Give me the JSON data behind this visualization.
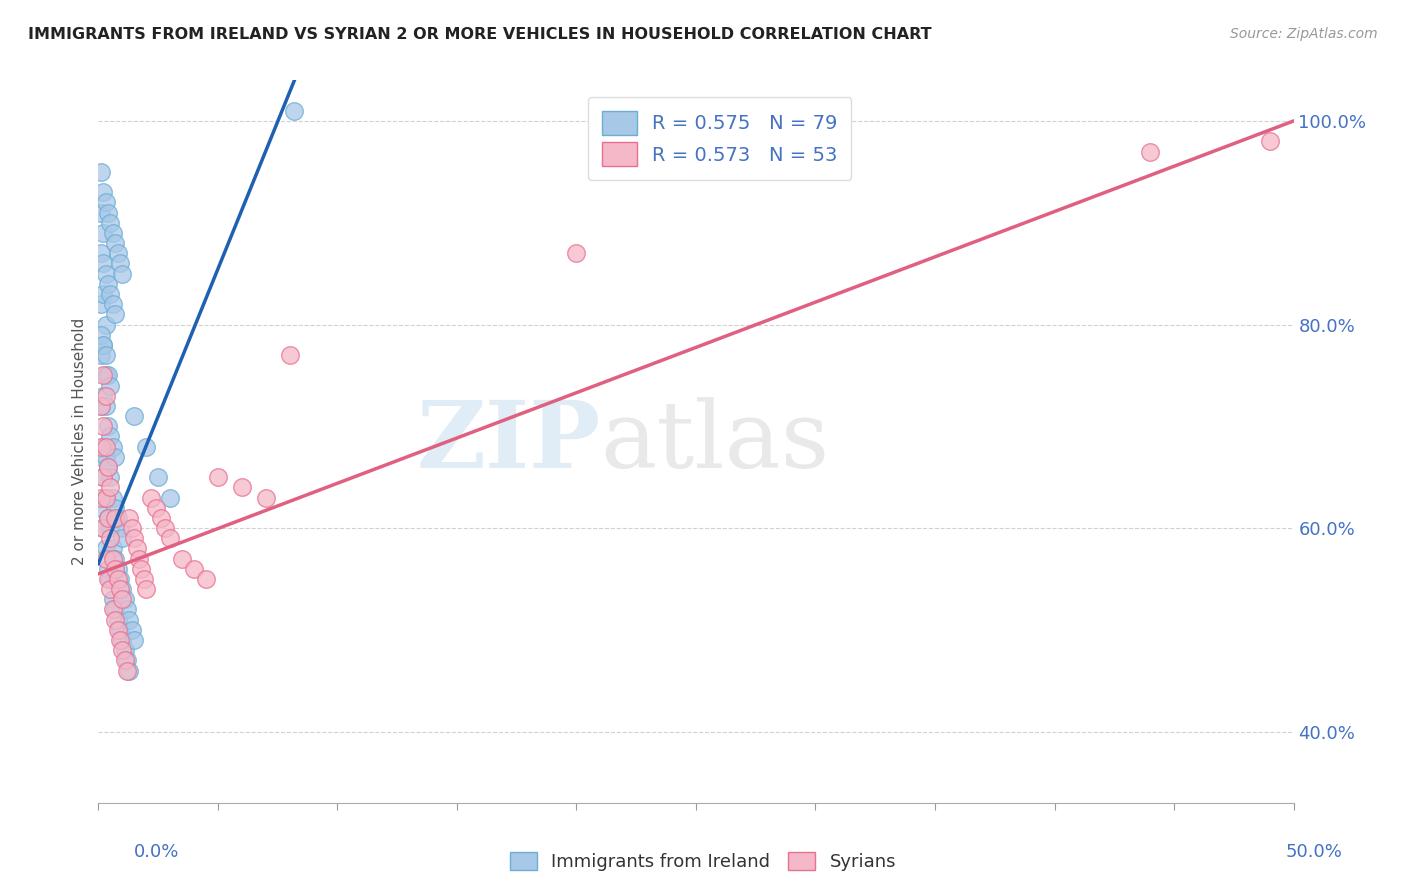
{
  "title": "IMMIGRANTS FROM IRELAND VS SYRIAN 2 OR MORE VEHICLES IN HOUSEHOLD CORRELATION CHART",
  "source": "Source: ZipAtlas.com",
  "ylabel": "2 or more Vehicles in Household",
  "watermark_zip": "ZIP",
  "watermark_atlas": "atlas",
  "ireland_color": "#a8c8e8",
  "ireland_edge_color": "#6aaed6",
  "syrian_color": "#f4b8c8",
  "syrian_edge_color": "#e87090",
  "ireland_line_color": "#2060b0",
  "syrian_line_color": "#e06080",
  "ireland_R": 0.575,
  "ireland_N": 79,
  "syrian_R": 0.573,
  "syrian_N": 53,
  "xmin": 0.0,
  "xmax": 0.5,
  "ymin": 0.33,
  "ymax": 1.04,
  "yticks": [
    0.4,
    0.6,
    0.8,
    1.0
  ],
  "ytick_labels": [
    "40.0%",
    "60.0%",
    "80.0%",
    "100.0%"
  ],
  "ireland_line_x0": 0.0,
  "ireland_line_x1": 0.082,
  "ireland_line_y0": 0.565,
  "ireland_line_y1": 1.04,
  "syrian_line_x0": 0.0,
  "syrian_line_x1": 0.5,
  "syrian_line_y0": 0.555,
  "syrian_line_y1": 1.0,
  "ireland_pts_x": [
    0.001,
    0.001,
    0.001,
    0.001,
    0.001,
    0.002,
    0.002,
    0.002,
    0.002,
    0.002,
    0.002,
    0.003,
    0.003,
    0.003,
    0.003,
    0.003,
    0.003,
    0.004,
    0.004,
    0.004,
    0.004,
    0.004,
    0.005,
    0.005,
    0.005,
    0.005,
    0.005,
    0.006,
    0.006,
    0.006,
    0.006,
    0.007,
    0.007,
    0.007,
    0.007,
    0.008,
    0.008,
    0.008,
    0.009,
    0.009,
    0.009,
    0.01,
    0.01,
    0.01,
    0.011,
    0.011,
    0.012,
    0.012,
    0.013,
    0.013,
    0.014,
    0.015,
    0.001,
    0.002,
    0.003,
    0.004,
    0.005,
    0.006,
    0.007,
    0.001,
    0.002,
    0.003,
    0.001,
    0.002,
    0.001,
    0.002,
    0.003,
    0.004,
    0.005,
    0.006,
    0.007,
    0.008,
    0.009,
    0.01,
    0.015,
    0.02,
    0.025,
    0.03,
    0.082
  ],
  "ireland_pts_y": [
    0.62,
    0.67,
    0.72,
    0.77,
    0.82,
    0.6,
    0.65,
    0.68,
    0.73,
    0.78,
    0.83,
    0.58,
    0.63,
    0.67,
    0.72,
    0.75,
    0.8,
    0.56,
    0.61,
    0.66,
    0.7,
    0.75,
    0.55,
    0.6,
    0.65,
    0.69,
    0.74,
    0.53,
    0.58,
    0.63,
    0.68,
    0.52,
    0.57,
    0.62,
    0.67,
    0.51,
    0.56,
    0.61,
    0.5,
    0.55,
    0.6,
    0.49,
    0.54,
    0.59,
    0.48,
    0.53,
    0.47,
    0.52,
    0.46,
    0.51,
    0.5,
    0.49,
    0.87,
    0.86,
    0.85,
    0.84,
    0.83,
    0.82,
    0.81,
    0.79,
    0.78,
    0.77,
    0.91,
    0.89,
    0.95,
    0.93,
    0.92,
    0.91,
    0.9,
    0.89,
    0.88,
    0.87,
    0.86,
    0.85,
    0.71,
    0.68,
    0.65,
    0.63,
    1.01
  ],
  "syrian_pts_x": [
    0.001,
    0.001,
    0.001,
    0.002,
    0.002,
    0.002,
    0.002,
    0.003,
    0.003,
    0.003,
    0.003,
    0.004,
    0.004,
    0.004,
    0.005,
    0.005,
    0.005,
    0.006,
    0.006,
    0.007,
    0.007,
    0.007,
    0.008,
    0.008,
    0.009,
    0.009,
    0.01,
    0.01,
    0.011,
    0.012,
    0.013,
    0.014,
    0.015,
    0.016,
    0.017,
    0.018,
    0.019,
    0.02,
    0.022,
    0.024,
    0.026,
    0.028,
    0.03,
    0.035,
    0.04,
    0.045,
    0.05,
    0.06,
    0.07,
    0.08,
    0.2,
    0.44,
    0.49
  ],
  "syrian_pts_y": [
    0.63,
    0.68,
    0.72,
    0.6,
    0.65,
    0.7,
    0.75,
    0.57,
    0.63,
    0.68,
    0.73,
    0.55,
    0.61,
    0.66,
    0.54,
    0.59,
    0.64,
    0.52,
    0.57,
    0.51,
    0.56,
    0.61,
    0.5,
    0.55,
    0.49,
    0.54,
    0.48,
    0.53,
    0.47,
    0.46,
    0.61,
    0.6,
    0.59,
    0.58,
    0.57,
    0.56,
    0.55,
    0.54,
    0.63,
    0.62,
    0.61,
    0.6,
    0.59,
    0.57,
    0.56,
    0.55,
    0.65,
    0.64,
    0.63,
    0.77,
    0.87,
    0.97,
    0.98
  ]
}
